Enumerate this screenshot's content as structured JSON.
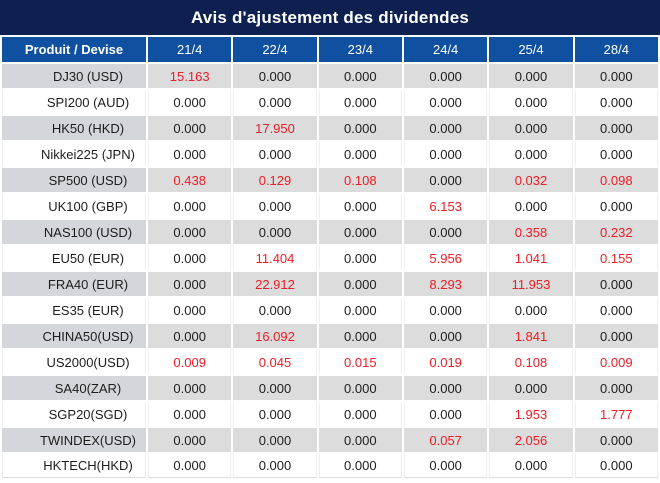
{
  "title": "Avis d'ajustement des dividendes",
  "colors": {
    "title_bg": "#0d2050",
    "header_bg": "#0f50a0",
    "shaded_row_bg": "#dcdcdc",
    "shaded_label_bg": "#d4d6db",
    "highlight_red": "#ee1c25",
    "text_color": "#1d1d1d"
  },
  "table": {
    "product_header": "Produit / Devise",
    "date_headers": [
      "21/4",
      "22/4",
      "23/4",
      "24/4",
      "25/4",
      "28/4"
    ],
    "rows": [
      {
        "product": "DJ30 (USD)",
        "values": [
          "15.163",
          "0.000",
          "0.000",
          "0.000",
          "0.000",
          "0.000"
        ]
      },
      {
        "product": "SPI200 (AUD)",
        "values": [
          "0.000",
          "0.000",
          "0.000",
          "0.000",
          "0.000",
          "0.000"
        ]
      },
      {
        "product": "HK50 (HKD)",
        "values": [
          "0.000",
          "17.950",
          "0.000",
          "0.000",
          "0.000",
          "0.000"
        ]
      },
      {
        "product": "Nikkei225 (JPN)",
        "values": [
          "0.000",
          "0.000",
          "0.000",
          "0.000",
          "0.000",
          "0.000"
        ]
      },
      {
        "product": "SP500 (USD)",
        "values": [
          "0.438",
          "0.129",
          "0.108",
          "0.000",
          "0.032",
          "0.098"
        ]
      },
      {
        "product": "UK100 (GBP)",
        "values": [
          "0.000",
          "0.000",
          "0.000",
          "6.153",
          "0.000",
          "0.000"
        ]
      },
      {
        "product": "NAS100 (USD)",
        "values": [
          "0.000",
          "0.000",
          "0.000",
          "0.000",
          "0.358",
          "0.232"
        ]
      },
      {
        "product": "EU50 (EUR)",
        "values": [
          "0.000",
          "11.404",
          "0.000",
          "5.956",
          "1.041",
          "0.155"
        ]
      },
      {
        "product": "FRA40 (EUR)",
        "values": [
          "0.000",
          "22.912",
          "0.000",
          "8.293",
          "11.953",
          "0.000"
        ]
      },
      {
        "product": "ES35 (EUR)",
        "values": [
          "0.000",
          "0.000",
          "0.000",
          "0.000",
          "0.000",
          "0.000"
        ]
      },
      {
        "product": "CHINA50(USD)",
        "values": [
          "0.000",
          "16.092",
          "0.000",
          "0.000",
          "1.841",
          "0.000"
        ]
      },
      {
        "product": "US2000(USD)",
        "values": [
          "0.009",
          "0.045",
          "0.015",
          "0.019",
          "0.108",
          "0.009"
        ]
      },
      {
        "product": "SA40(ZAR)",
        "values": [
          "0.000",
          "0.000",
          "0.000",
          "0.000",
          "0.000",
          "0.000"
        ]
      },
      {
        "product": "SGP20(SGD)",
        "values": [
          "0.000",
          "0.000",
          "0.000",
          "0.000",
          "1.953",
          "1.777"
        ]
      },
      {
        "product": "TWINDEX(USD)",
        "values": [
          "0.000",
          "0.000",
          "0.000",
          "0.057",
          "2.056",
          "0.000"
        ]
      },
      {
        "product": "HKTECH(HKD)",
        "values": [
          "0.000",
          "0.000",
          "0.000",
          "0.000",
          "0.000",
          "0.000"
        ]
      }
    ]
  }
}
